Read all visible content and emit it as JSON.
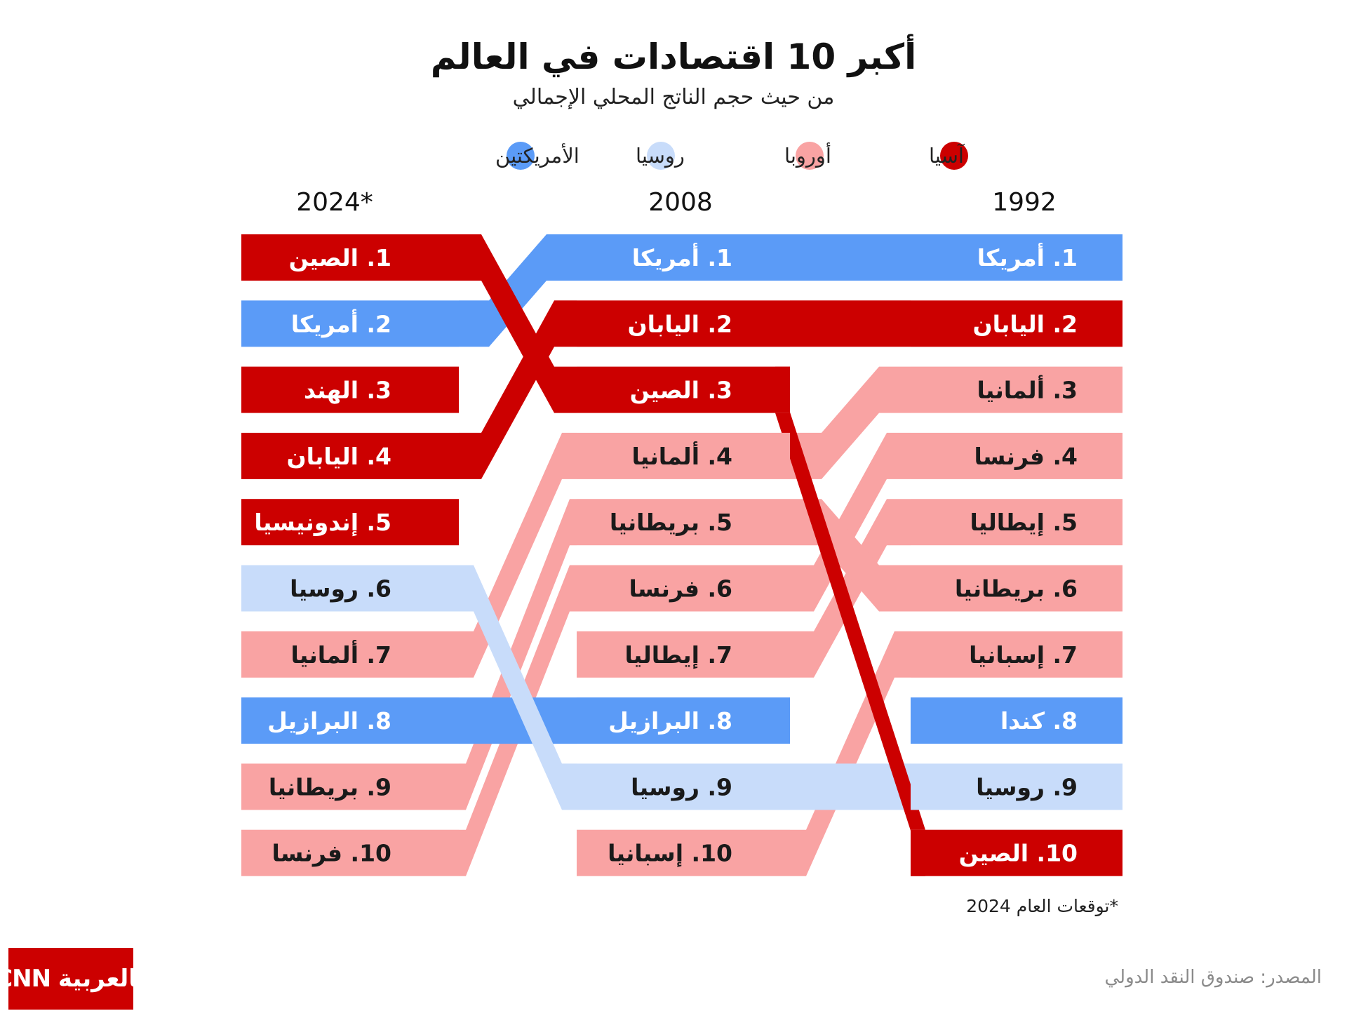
{
  "title": "أكبر 10 اقتصادات في العالم",
  "subtitle": "من حيث حجم الناتج المحلي الإجمالي",
  "colors": {
    "asia": "#cc0000",
    "europe": "#f9a3a3",
    "russia": "#c8dcfa",
    "americas": "#5b9bf7"
  },
  "legend": [
    {
      "key": "asia",
      "label": "آسيا"
    },
    {
      "key": "europe",
      "label": "أوروبا"
    },
    {
      "key": "russia",
      "label": "روسيا"
    },
    {
      "key": "americas",
      "label": "الأمريكتين"
    }
  ],
  "chart_data": {
    "type": "bump",
    "columns": [
      {
        "year": "1992",
        "ranks": [
          {
            "label": "1. أمريكا",
            "country": "أمريكا",
            "region": "americas"
          },
          {
            "label": "2. اليابان",
            "country": "اليابان",
            "region": "asia"
          },
          {
            "label": "3. ألمانيا",
            "country": "ألمانيا",
            "region": "europe"
          },
          {
            "label": "4. فرنسا",
            "country": "فرنسا",
            "region": "europe"
          },
          {
            "label": "5. إيطاليا",
            "country": "إيطاليا",
            "region": "europe"
          },
          {
            "label": "6. بريطانيا",
            "country": "بريطانيا",
            "region": "europe"
          },
          {
            "label": "7. إسبانيا",
            "country": "إسبانيا",
            "region": "europe"
          },
          {
            "label": "8. كندا",
            "country": "كندا",
            "region": "americas"
          },
          {
            "label": "9. روسيا",
            "country": "روسيا",
            "region": "russia"
          },
          {
            "label": "10. الصين",
            "country": "الصين",
            "region": "asia"
          }
        ]
      },
      {
        "year": "2008",
        "ranks": [
          {
            "label": "1. أمريكا",
            "country": "أمريكا",
            "region": "americas"
          },
          {
            "label": "2. اليابان",
            "country": "اليابان",
            "region": "asia"
          },
          {
            "label": "3. الصين",
            "country": "الصين",
            "region": "asia"
          },
          {
            "label": "4. ألمانيا",
            "country": "ألمانيا",
            "region": "europe"
          },
          {
            "label": "5. بريطانيا",
            "country": "بريطانيا",
            "region": "europe"
          },
          {
            "label": "6. فرنسا",
            "country": "فرنسا",
            "region": "europe"
          },
          {
            "label": "7. إيطاليا",
            "country": "إيطاليا",
            "region": "europe"
          },
          {
            "label": "8. البرازيل",
            "country": "البرازيل",
            "region": "americas"
          },
          {
            "label": "9. روسيا",
            "country": "روسيا",
            "region": "russia"
          },
          {
            "label": "10. إسبانيا",
            "country": "إسبانيا",
            "region": "europe"
          }
        ]
      },
      {
        "year": "2024*",
        "ranks": [
          {
            "label": "1. الصين",
            "country": "الصين",
            "region": "asia"
          },
          {
            "label": "2. أمريكا",
            "country": "أمريكا",
            "region": "americas"
          },
          {
            "label": "3. الهند",
            "country": "الهند",
            "region": "asia"
          },
          {
            "label": "4. اليابان",
            "country": "اليابان",
            "region": "asia"
          },
          {
            "label": "5. إندونيسيا",
            "country": "إندونيسيا",
            "region": "asia"
          },
          {
            "label": "6. روسيا",
            "country": "روسيا",
            "region": "russia"
          },
          {
            "label": "7. ألمانيا",
            "country": "ألمانيا",
            "region": "europe"
          },
          {
            "label": "8. البرازيل",
            "country": "البرازيل",
            "region": "americas"
          },
          {
            "label": "9. بريطانيا",
            "country": "بريطانيا",
            "region": "europe"
          },
          {
            "label": "10. فرنسا",
            "country": "فرنسا",
            "region": "europe"
          }
        ]
      }
    ]
  },
  "footnote": "*توقعات العام 2024",
  "source": "المصدر: صندوق النقد الدولي",
  "logo_text": "بالعربية CNN"
}
